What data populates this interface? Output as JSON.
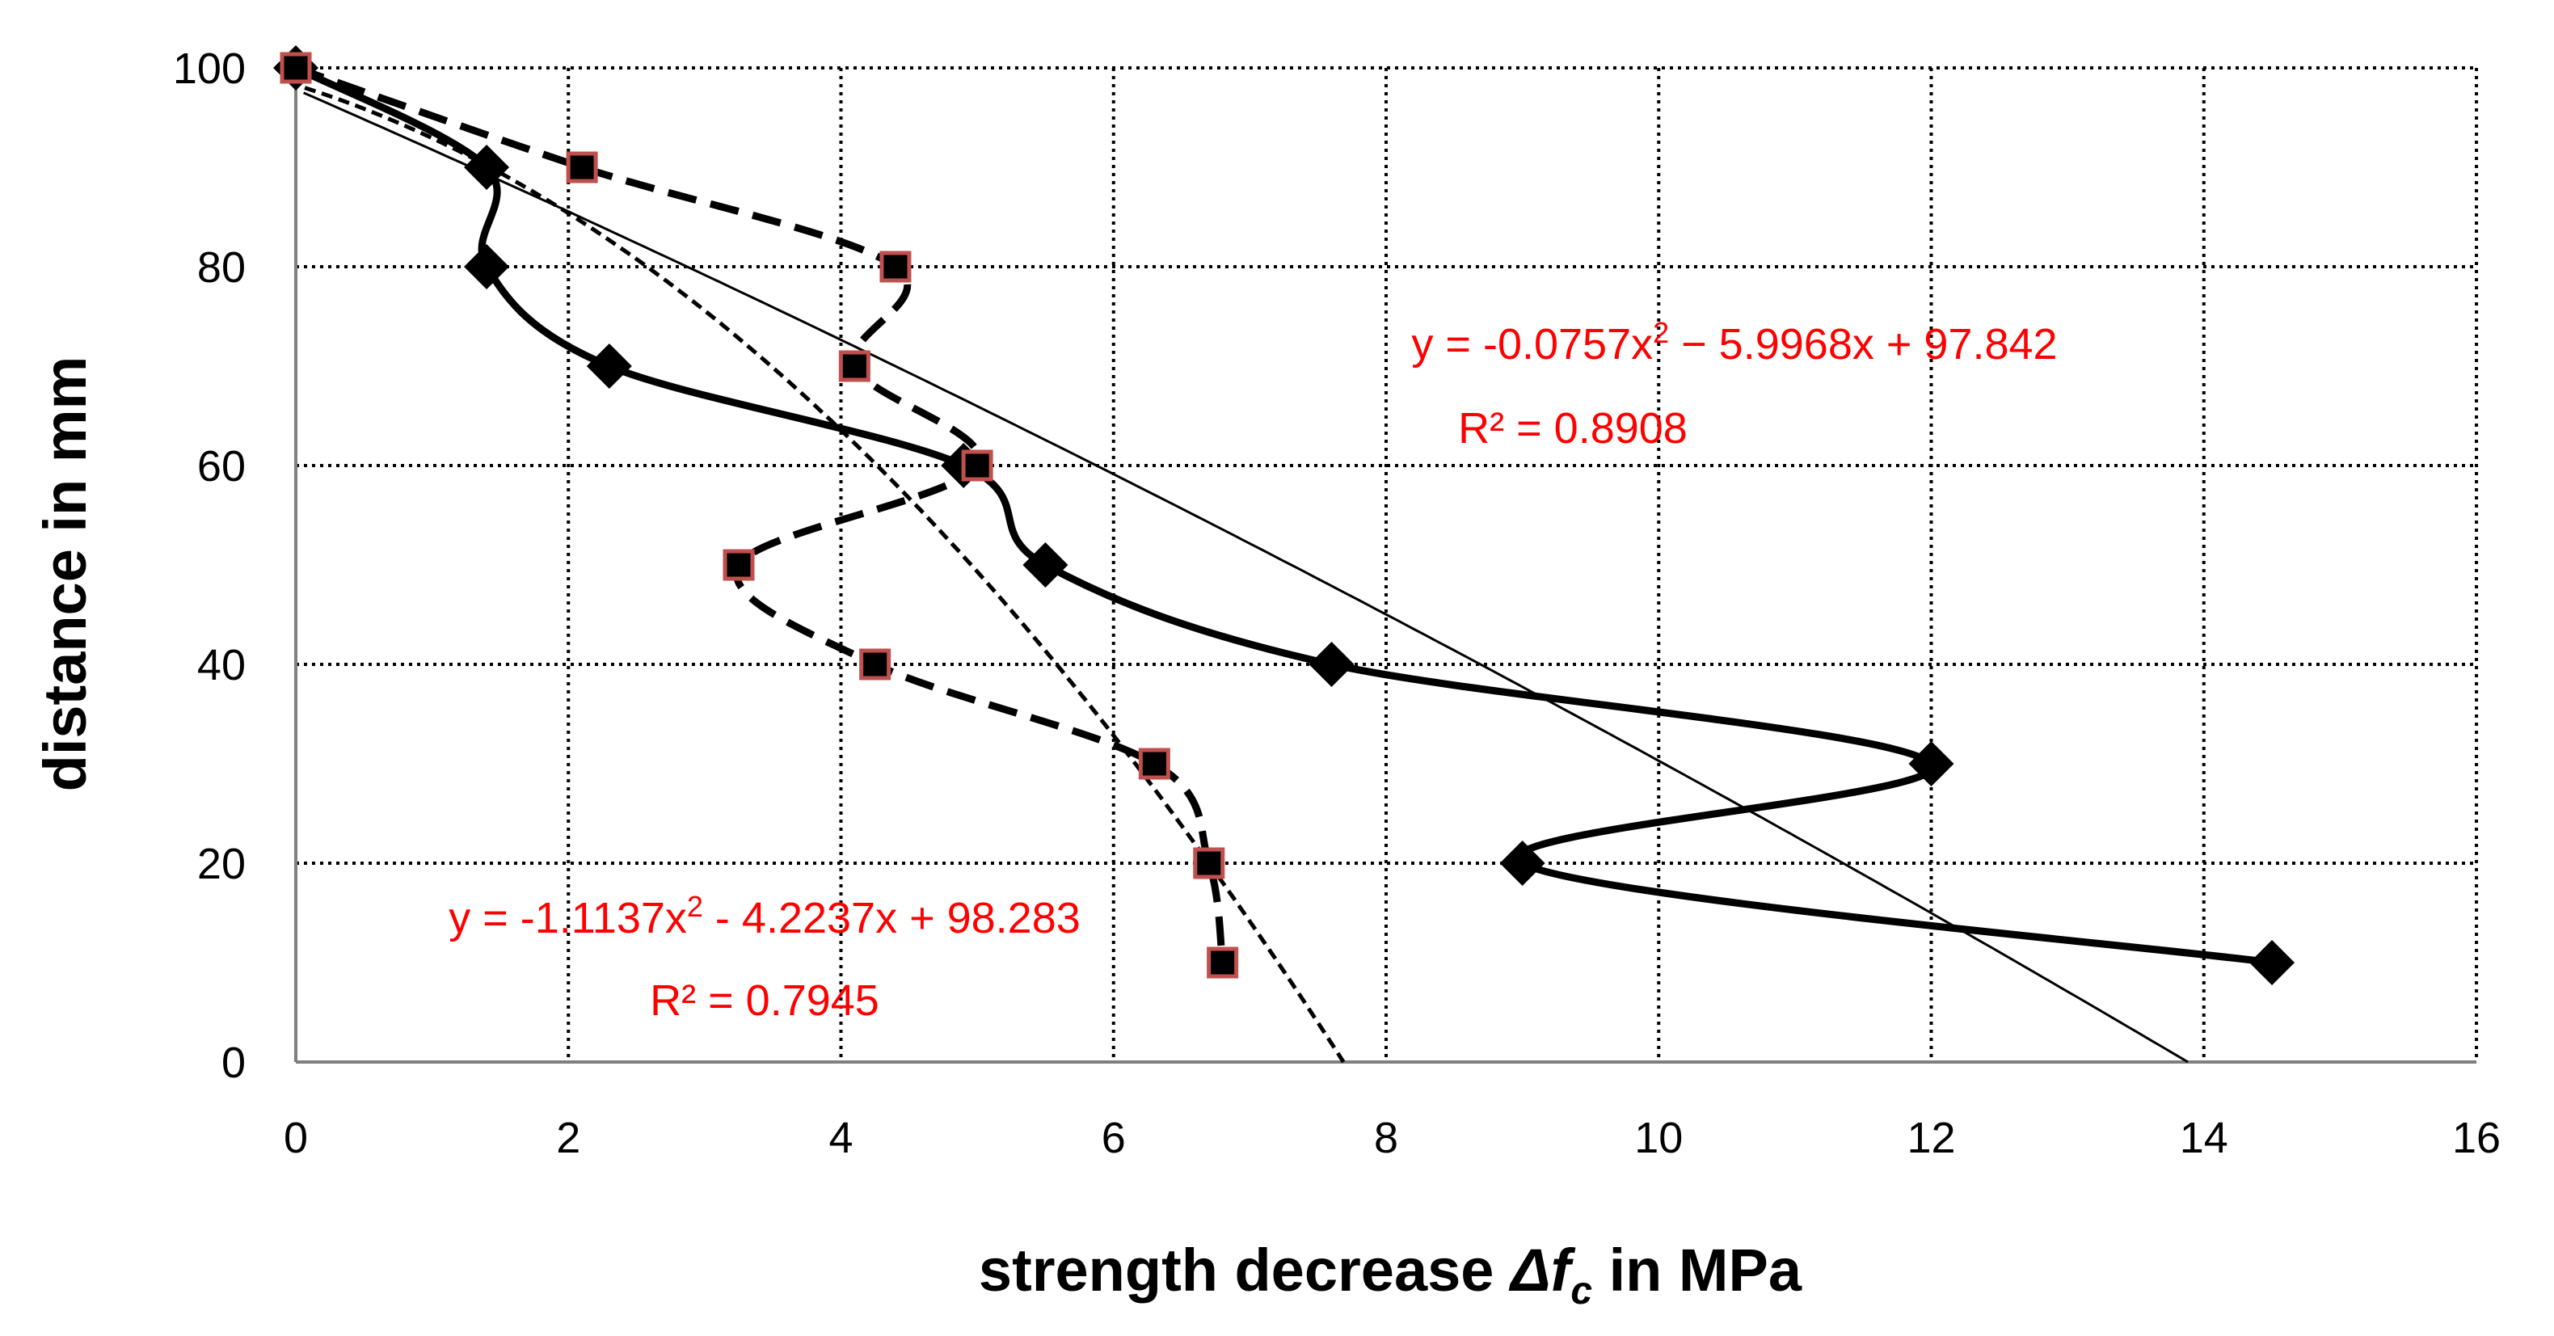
{
  "chart_data": {
    "type": "scatter",
    "title": "",
    "xlabel_parts": {
      "prefix": "strength decrease ",
      "delta": "Δ",
      "f": "f",
      "sub": "c",
      "suffix": " in MPa"
    },
    "ylabel": "distance in mm",
    "xlim": [
      0,
      16
    ],
    "ylim": [
      0,
      100
    ],
    "x_ticks": [
      "0",
      "2",
      "4",
      "6",
      "8",
      "10",
      "12",
      "14",
      "16"
    ],
    "y_ticks": [
      "0",
      "20",
      "40",
      "60",
      "80",
      "100"
    ],
    "grid": true,
    "series": [
      {
        "name": "diamond series",
        "marker": "diamond",
        "line": "solid",
        "color": "#000000",
        "points": [
          [
            0,
            100
          ],
          [
            1.4,
            90
          ],
          [
            1.4,
            80
          ],
          [
            2.3,
            70
          ],
          [
            4.9,
            60
          ],
          [
            5.5,
            50
          ],
          [
            7.6,
            40
          ],
          [
            12.0,
            30
          ],
          [
            9.0,
            20
          ],
          [
            14.5,
            10
          ]
        ]
      },
      {
        "name": "square series",
        "marker": "square",
        "line": "dashed",
        "color": "#000000",
        "marker_edge": "#c0504d",
        "points": [
          [
            0,
            100
          ],
          [
            2.1,
            90
          ],
          [
            4.4,
            80
          ],
          [
            4.1,
            70
          ],
          [
            5.0,
            60
          ],
          [
            3.25,
            50
          ],
          [
            4.25,
            40
          ],
          [
            6.3,
            30
          ],
          [
            6.7,
            20
          ],
          [
            6.8,
            10
          ]
        ]
      }
    ],
    "trendlines": [
      {
        "for": "diamond series",
        "type": "poly2",
        "coefficients": [
          -0.0757,
          -5.9968,
          97.842
        ],
        "line": "solid-thin"
      },
      {
        "for": "square series",
        "type": "poly2",
        "coefficients": [
          -1.1137,
          -4.2237,
          98.283
        ],
        "line": "dashed-thin"
      }
    ],
    "annotations": [
      {
        "id": "eq1",
        "pre": "y = -0.0757x",
        "sup": "2",
        "post": " − 5.9968x + 97.842",
        "r2": "R² = 0.8908",
        "color": "#ff0000"
      },
      {
        "id": "eq2",
        "pre": "y = -1.1137x",
        "sup": "2",
        "post": " - 4.2237x + 98.283",
        "r2": "R² = 0.7945",
        "color": "#ff0000"
      }
    ]
  }
}
